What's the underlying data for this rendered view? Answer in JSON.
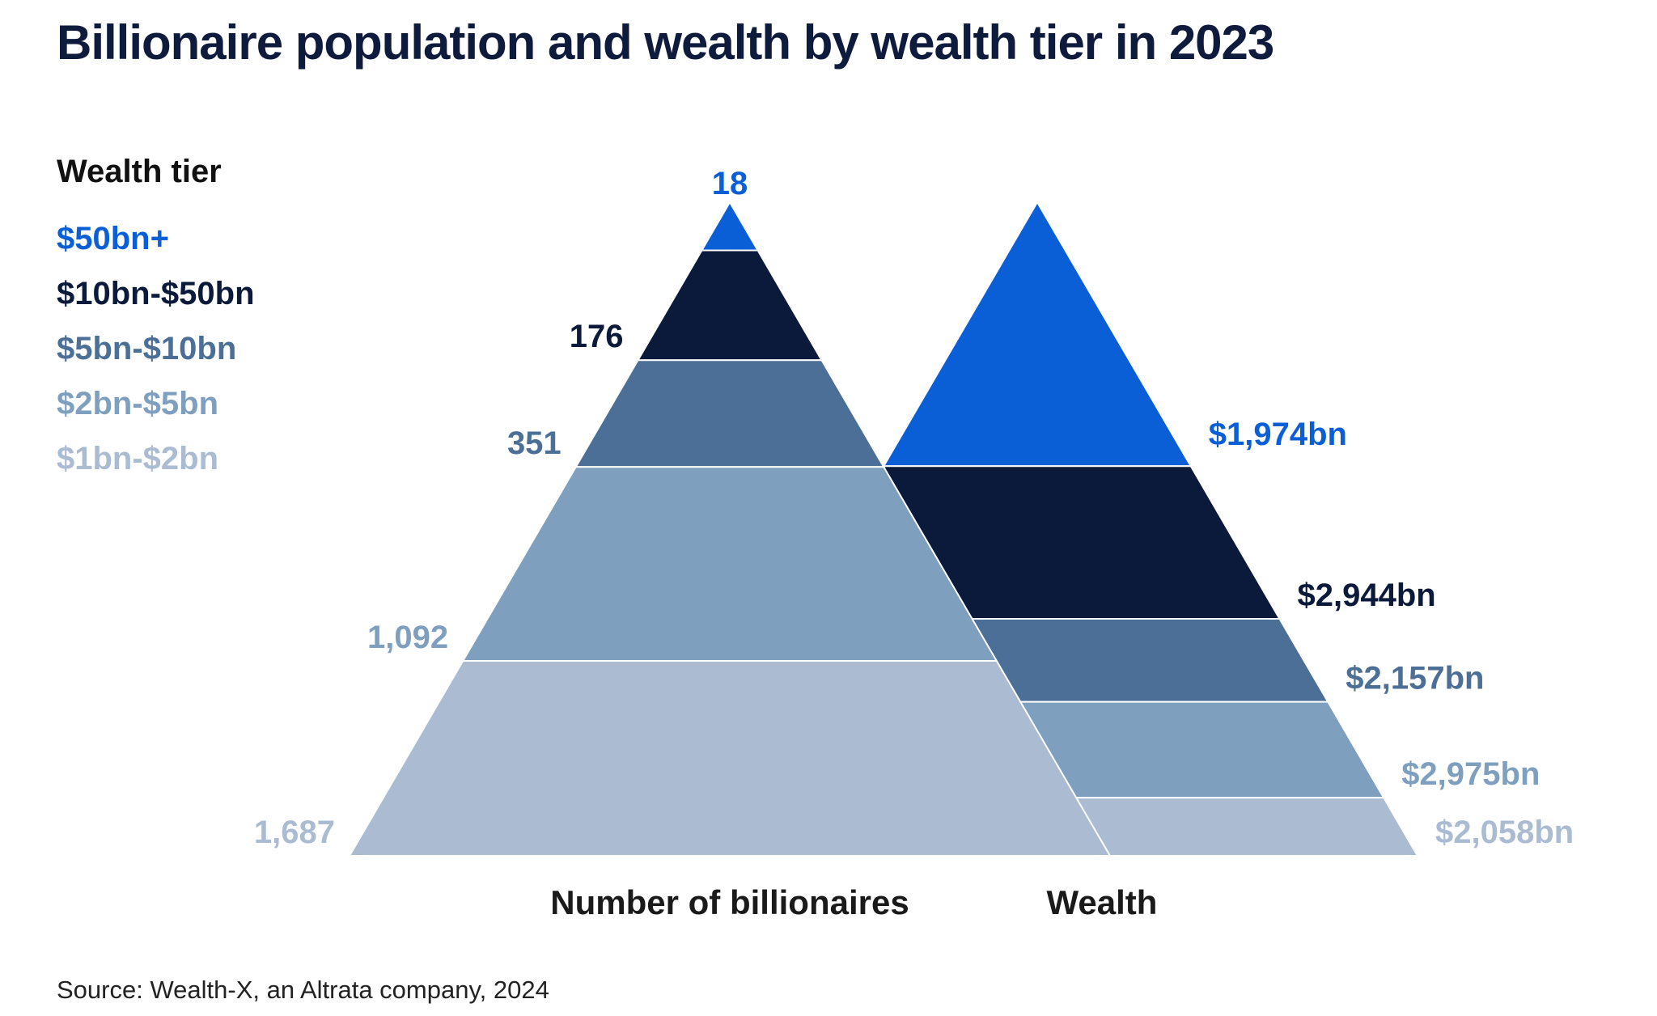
{
  "title": "Billionaire population and wealth by wealth tier  in 2023",
  "legend": {
    "title": "Wealth tier",
    "items": [
      {
        "label": "$50bn+",
        "color": "#0a5fd6"
      },
      {
        "label": "$10bn-$50bn",
        "color": "#0b1a3b"
      },
      {
        "label": "$5bn-$10bn",
        "color": "#4c6f97"
      },
      {
        "label": "$2bn-$5bn",
        "color": "#7f9fbf"
      },
      {
        "label": "$1bn-$2bn",
        "color": "#aabbd2"
      }
    ]
  },
  "chart_data": {
    "type": "pyramid",
    "categories": [
      "$50bn+",
      "$10bn-$50bn",
      "$5bn-$10bn",
      "$2bn-$5bn",
      "$1bn-$2bn"
    ],
    "series": [
      {
        "name": "Number of billionaires",
        "values": [
          18,
          176,
          351,
          1092,
          1687
        ],
        "labels": [
          "18",
          "176",
          "351",
          "1,092",
          "1,687"
        ]
      },
      {
        "name": "Wealth",
        "values": [
          1974,
          2944,
          2157,
          2975,
          2058
        ],
        "labels": [
          "$1,974bn",
          "$2,944bn",
          "$2,157bn",
          "$2,975bn",
          "$2,058bn"
        ]
      }
    ],
    "colors": [
      "#0a5fd6",
      "#0b1a3b",
      "#4c6f97",
      "#7f9fbf",
      "#aabbd2"
    ],
    "legend_position": "left"
  },
  "axis_labels": {
    "count": "Number of billionaires",
    "wealth": "Wealth"
  },
  "source": "Source: Wealth-X, an Altrata company, 2024"
}
